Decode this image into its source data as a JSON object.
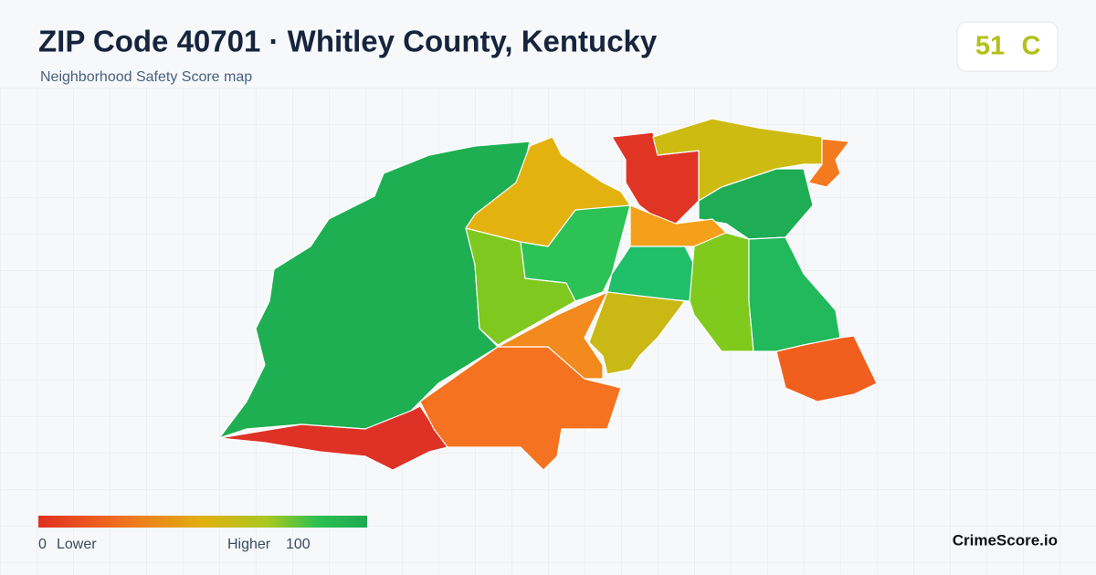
{
  "header": {
    "title": "ZIP Code 40701 · Whitley County, Kentucky",
    "subtitle": "Neighborhood Safety Score map"
  },
  "score": {
    "value": 51,
    "grade": "C"
  },
  "legend": {
    "min": 0,
    "min_label": "Lower",
    "max_label": "Higher",
    "max": 100
  },
  "brand": "CrimeScore.io"
}
